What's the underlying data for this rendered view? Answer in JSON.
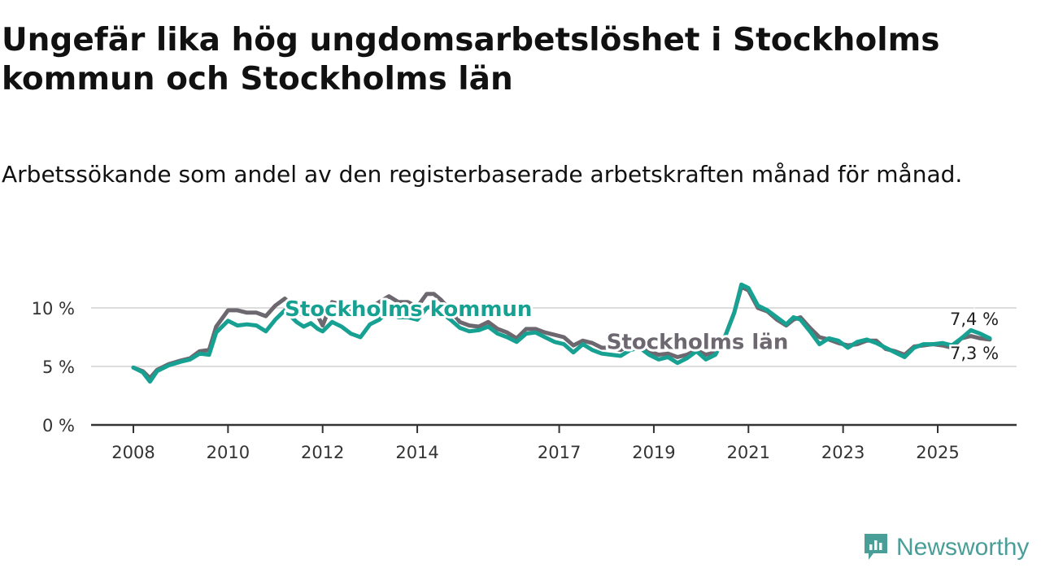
{
  "title": "Ungefär lika hög ungdomsarbetslöshet i Stockholms kommun och Stockholms län",
  "subtitle": "Arbetssökande som andel av den registerbaserade arbetskraften månad för månad.",
  "brand": {
    "name": "Newsworthy",
    "color": "#4a9e98"
  },
  "colors": {
    "kommun": "#17a192",
    "lan": "#6d6870",
    "grid": "#dddddd",
    "axis": "#333333"
  },
  "chart_data": {
    "type": "line",
    "title": "Ungefär lika hög ungdomsarbetslöshet i Stockholms kommun och Stockholms län",
    "xlabel": "",
    "ylabel": "",
    "xlim": [
      2008,
      2026.2
    ],
    "ylim": [
      0,
      12
    ],
    "y_ticks": [
      {
        "v": 0,
        "label": "0 %"
      },
      {
        "v": 5,
        "label": "5 %"
      },
      {
        "v": 10,
        "label": "10 %"
      }
    ],
    "x_ticks": [
      "2008",
      "2010",
      "2012",
      "2014",
      "2017",
      "2019",
      "2021",
      "2023",
      "2025"
    ],
    "grid": true,
    "series": [
      {
        "name": "Stockholms län",
        "color": "#6d6870",
        "label_at": [
          2018.0,
          6.5
        ],
        "end_label": "7,3 %",
        "points": [
          [
            2008.0,
            4.9
          ],
          [
            2008.2,
            4.6
          ],
          [
            2008.35,
            4.0
          ],
          [
            2008.5,
            4.7
          ],
          [
            2008.75,
            5.2
          ],
          [
            2009.0,
            5.5
          ],
          [
            2009.2,
            5.7
          ],
          [
            2009.4,
            6.3
          ],
          [
            2009.6,
            6.4
          ],
          [
            2009.75,
            8.4
          ],
          [
            2010.0,
            9.8
          ],
          [
            2010.2,
            9.8
          ],
          [
            2010.4,
            9.6
          ],
          [
            2010.6,
            9.6
          ],
          [
            2010.8,
            9.3
          ],
          [
            2011.0,
            10.2
          ],
          [
            2011.2,
            10.8
          ],
          [
            2011.45,
            9.8
          ],
          [
            2011.6,
            9.3
          ],
          [
            2011.75,
            9.8
          ],
          [
            2011.9,
            9.3
          ],
          [
            2012.0,
            8.5
          ],
          [
            2012.2,
            10.5
          ],
          [
            2012.4,
            10.3
          ],
          [
            2012.6,
            9.6
          ],
          [
            2012.8,
            9.5
          ],
          [
            2013.0,
            10.0
          ],
          [
            2013.2,
            10.5
          ],
          [
            2013.4,
            11.0
          ],
          [
            2013.6,
            10.5
          ],
          [
            2013.8,
            10.5
          ],
          [
            2014.0,
            10.1
          ],
          [
            2014.2,
            11.2
          ],
          [
            2014.35,
            11.2
          ],
          [
            2014.5,
            10.7
          ],
          [
            2014.7,
            9.8
          ],
          [
            2014.9,
            8.8
          ],
          [
            2015.1,
            8.5
          ],
          [
            2015.3,
            8.4
          ],
          [
            2015.5,
            8.8
          ],
          [
            2015.7,
            8.2
          ],
          [
            2015.9,
            7.9
          ],
          [
            2016.1,
            7.4
          ],
          [
            2016.3,
            8.2
          ],
          [
            2016.5,
            8.2
          ],
          [
            2016.7,
            7.9
          ],
          [
            2016.9,
            7.7
          ],
          [
            2017.1,
            7.5
          ],
          [
            2017.3,
            6.8
          ],
          [
            2017.5,
            7.2
          ],
          [
            2017.7,
            7.0
          ],
          [
            2017.9,
            6.6
          ],
          [
            2018.1,
            6.6
          ],
          [
            2018.3,
            6.4
          ],
          [
            2018.5,
            6.8
          ],
          [
            2018.7,
            6.7
          ],
          [
            2018.9,
            6.3
          ],
          [
            2019.1,
            6.0
          ],
          [
            2019.3,
            6.1
          ],
          [
            2019.5,
            5.8
          ],
          [
            2019.7,
            6.0
          ],
          [
            2019.9,
            6.4
          ],
          [
            2020.1,
            6.0
          ],
          [
            2020.3,
            6.2
          ],
          [
            2020.5,
            7.5
          ],
          [
            2020.7,
            9.6
          ],
          [
            2020.85,
            11.8
          ],
          [
            2021.0,
            11.5
          ],
          [
            2021.2,
            10.0
          ],
          [
            2021.4,
            9.7
          ],
          [
            2021.6,
            9.0
          ],
          [
            2021.8,
            8.5
          ],
          [
            2021.95,
            9.0
          ],
          [
            2022.1,
            9.2
          ],
          [
            2022.3,
            8.3
          ],
          [
            2022.5,
            7.5
          ],
          [
            2022.7,
            7.3
          ],
          [
            2022.9,
            7.0
          ],
          [
            2023.1,
            6.8
          ],
          [
            2023.3,
            6.9
          ],
          [
            2023.5,
            7.2
          ],
          [
            2023.7,
            7.2
          ],
          [
            2023.9,
            6.5
          ],
          [
            2024.1,
            6.3
          ],
          [
            2024.3,
            6.0
          ],
          [
            2024.5,
            6.7
          ],
          [
            2024.7,
            6.8
          ],
          [
            2024.9,
            6.9
          ],
          [
            2025.1,
            6.8
          ],
          [
            2025.3,
            6.6
          ],
          [
            2025.5,
            7.4
          ],
          [
            2025.7,
            7.6
          ],
          [
            2025.9,
            7.4
          ],
          [
            2026.1,
            7.3
          ]
        ]
      },
      {
        "name": "Stockholms kommun",
        "color": "#17a192",
        "label_at": [
          2011.2,
          9.3
        ],
        "end_label": "7,4 %",
        "points": [
          [
            2008.0,
            4.9
          ],
          [
            2008.2,
            4.5
          ],
          [
            2008.35,
            3.7
          ],
          [
            2008.5,
            4.6
          ],
          [
            2008.75,
            5.1
          ],
          [
            2009.0,
            5.4
          ],
          [
            2009.2,
            5.6
          ],
          [
            2009.4,
            6.1
          ],
          [
            2009.6,
            6.0
          ],
          [
            2009.75,
            7.9
          ],
          [
            2010.0,
            8.9
          ],
          [
            2010.2,
            8.5
          ],
          [
            2010.4,
            8.6
          ],
          [
            2010.6,
            8.5
          ],
          [
            2010.8,
            8.0
          ],
          [
            2011.0,
            9.0
          ],
          [
            2011.2,
            9.8
          ],
          [
            2011.45,
            8.8
          ],
          [
            2011.6,
            8.4
          ],
          [
            2011.75,
            8.7
          ],
          [
            2011.9,
            8.2
          ],
          [
            2012.0,
            8.0
          ],
          [
            2012.2,
            8.8
          ],
          [
            2012.4,
            8.4
          ],
          [
            2012.6,
            7.8
          ],
          [
            2012.8,
            7.5
          ],
          [
            2013.0,
            8.6
          ],
          [
            2013.2,
            9.0
          ],
          [
            2013.4,
            9.8
          ],
          [
            2013.6,
            9.2
          ],
          [
            2013.8,
            9.2
          ],
          [
            2014.0,
            9.0
          ],
          [
            2014.2,
            10.0
          ],
          [
            2014.35,
            10.2
          ],
          [
            2014.5,
            9.6
          ],
          [
            2014.7,
            9.0
          ],
          [
            2014.9,
            8.3
          ],
          [
            2015.1,
            8.0
          ],
          [
            2015.3,
            8.1
          ],
          [
            2015.5,
            8.4
          ],
          [
            2015.7,
            7.8
          ],
          [
            2015.9,
            7.5
          ],
          [
            2016.1,
            7.1
          ],
          [
            2016.3,
            7.8
          ],
          [
            2016.5,
            7.9
          ],
          [
            2016.7,
            7.5
          ],
          [
            2016.9,
            7.1
          ],
          [
            2017.1,
            6.9
          ],
          [
            2017.3,
            6.2
          ],
          [
            2017.5,
            6.9
          ],
          [
            2017.7,
            6.4
          ],
          [
            2017.9,
            6.1
          ],
          [
            2018.1,
            6.0
          ],
          [
            2018.3,
            5.9
          ],
          [
            2018.5,
            6.4
          ],
          [
            2018.7,
            6.6
          ],
          [
            2018.9,
            6.0
          ],
          [
            2019.1,
            5.6
          ],
          [
            2019.3,
            5.8
          ],
          [
            2019.5,
            5.3
          ],
          [
            2019.7,
            5.7
          ],
          [
            2019.9,
            6.3
          ],
          [
            2020.1,
            5.6
          ],
          [
            2020.3,
            6.0
          ],
          [
            2020.5,
            7.5
          ],
          [
            2020.7,
            9.6
          ],
          [
            2020.85,
            12.0
          ],
          [
            2021.0,
            11.7
          ],
          [
            2021.2,
            10.2
          ],
          [
            2021.4,
            9.8
          ],
          [
            2021.6,
            9.2
          ],
          [
            2021.8,
            8.6
          ],
          [
            2021.95,
            9.2
          ],
          [
            2022.1,
            9.0
          ],
          [
            2022.3,
            8.0
          ],
          [
            2022.5,
            6.9
          ],
          [
            2022.7,
            7.4
          ],
          [
            2022.9,
            7.2
          ],
          [
            2023.1,
            6.6
          ],
          [
            2023.3,
            7.1
          ],
          [
            2023.5,
            7.3
          ],
          [
            2023.7,
            7.0
          ],
          [
            2023.9,
            6.6
          ],
          [
            2024.1,
            6.2
          ],
          [
            2024.3,
            5.8
          ],
          [
            2024.5,
            6.6
          ],
          [
            2024.7,
            6.9
          ],
          [
            2024.9,
            6.9
          ],
          [
            2025.1,
            7.0
          ],
          [
            2025.3,
            6.8
          ],
          [
            2025.5,
            7.4
          ],
          [
            2025.7,
            8.1
          ],
          [
            2025.9,
            7.8
          ],
          [
            2026.1,
            7.4
          ]
        ]
      }
    ]
  }
}
